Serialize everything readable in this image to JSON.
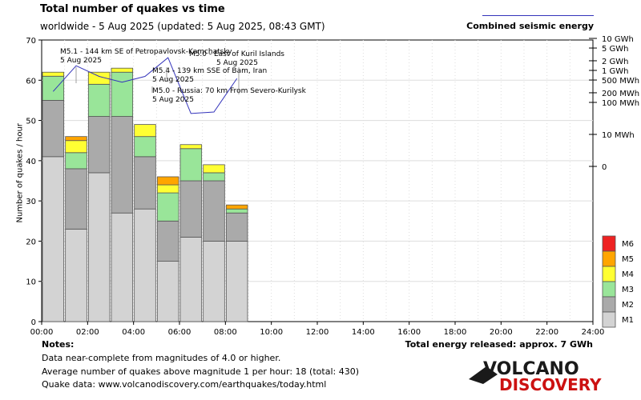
{
  "chart_data": {
    "type": "bar",
    "title": "Total number of quakes vs time",
    "subtitle": "worldwide -  5 Aug 2025 (updated: 5 Aug 2025, 08:43 GMT)",
    "ylabel": "Number of quakes / hour",
    "ylim": [
      0,
      70
    ],
    "y_ticks": [
      "0",
      "10",
      "20",
      "30",
      "40",
      "50",
      "60",
      "70"
    ],
    "x_tick_labels": [
      "00:00",
      "02:00",
      "04:00",
      "06:00",
      "08:00",
      "10:00",
      "12:00",
      "14:00",
      "16:00",
      "18:00",
      "20:00",
      "22:00",
      "24:00"
    ],
    "xlim_hours": [
      0,
      24
    ],
    "categories": [
      0,
      1,
      2,
      3,
      4,
      5,
      6,
      7,
      8
    ],
    "series": [
      {
        "name": "M1",
        "color": "#d3d3d3",
        "values": [
          41,
          23,
          37,
          27,
          28,
          15,
          21,
          20,
          20
        ]
      },
      {
        "name": "M2",
        "color": "#aaaaaa",
        "values": [
          14,
          15,
          14,
          24,
          13,
          10,
          14,
          15,
          7
        ]
      },
      {
        "name": "M3",
        "color": "#99e599",
        "values": [
          6,
          4,
          8,
          11,
          5,
          7,
          8,
          2,
          1
        ]
      },
      {
        "name": "M4",
        "color": "#ffff33",
        "values": [
          1,
          3,
          3,
          1,
          3,
          2,
          1,
          2,
          0
        ]
      },
      {
        "name": "M5",
        "color": "#ffa500",
        "values": [
          0,
          1,
          0,
          0,
          0,
          2,
          0,
          0,
          1
        ]
      },
      {
        "name": "M6",
        "color": "#ee2222",
        "values": [
          0,
          0,
          0,
          0,
          0,
          0,
          0,
          0,
          0
        ]
      }
    ],
    "legend_order": [
      "M6",
      "M5",
      "M4",
      "M3",
      "M2",
      "M1"
    ],
    "energy_axis_ticks": [
      "10 GWh",
      "5 GWh",
      "2 GWh",
      "1 GWh",
      "500 MWh",
      "200 MWh",
      "100 MWh",
      "10 MWh",
      "0"
    ],
    "energy_series": {
      "name": "Combined seismic energy",
      "color": "#3333bb",
      "hours": [
        0.5,
        1.5,
        2.5,
        3.5,
        4.5,
        5.5,
        6.5,
        7.5,
        8.5
      ],
      "energy_MWh": [
        220,
        1400,
        650,
        430,
        650,
        2500,
        45,
        50,
        560
      ]
    },
    "annotations": [
      {
        "text": "M5.1 - 144 km SE of Petropavlovsk-Kamchatsky",
        "date": "5 Aug 2025",
        "hour": 1.5
      },
      {
        "text": "M5.4 - 139 km SSE of Bam, Iran",
        "date": "5 Aug 2025",
        "hour": 4.9
      },
      {
        "text": "M5.0 - Russia: 70 km From Severo-Kurilysk",
        "date": "5 Aug 2025",
        "hour": 4.9
      },
      {
        "text": "M5.0 - East of Kuril Islands",
        "date": "5 Aug 2025",
        "hour": 8.5
      }
    ]
  },
  "notes": {
    "title": "Notes:",
    "lines": [
      "Data near-complete from magnitudes of 4.0 or higher.",
      "Average number of quakes above magnitude 1 per hour: 18 (total: 430)",
      "Quake data: www.volcanodiscovery.com/earthquakes/today.html"
    ]
  },
  "energy_total": "Total energy released: approx. 7 GWh",
  "logo": {
    "line1": "VOLCANO",
    "line2": "DISCOVERY"
  },
  "colors": {
    "logo_red": "#cc1111",
    "logo_dark": "#1a1a1a"
  }
}
